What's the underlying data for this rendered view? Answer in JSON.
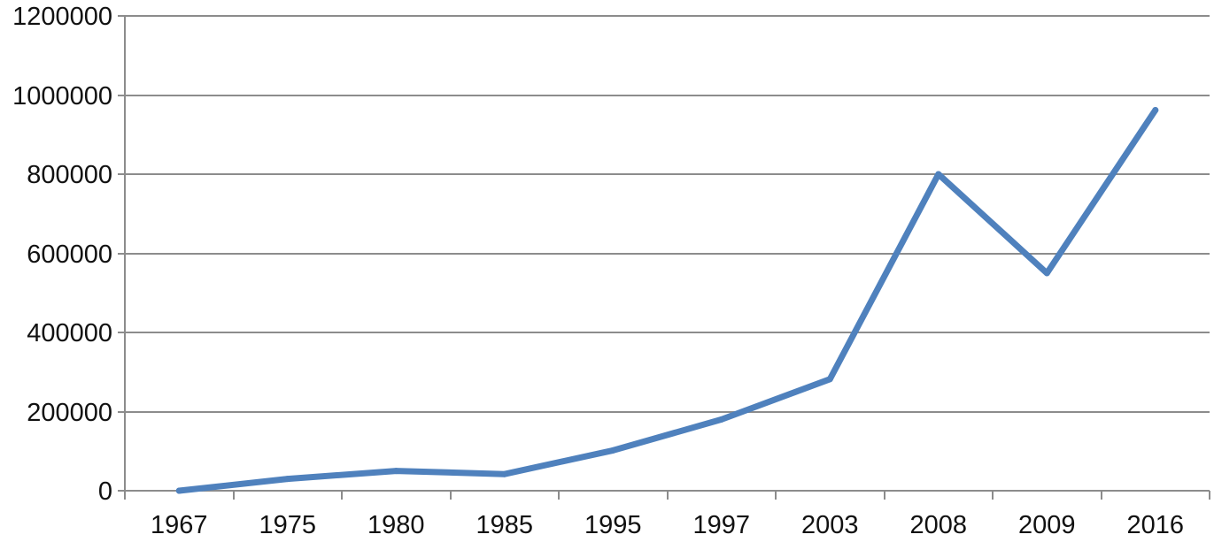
{
  "chart_data": {
    "type": "line",
    "title": "",
    "xlabel": "",
    "ylabel": "",
    "categories": [
      "1967",
      "1975",
      "1980",
      "1985",
      "1995",
      "1997",
      "2003",
      "2008",
      "2009",
      "2016"
    ],
    "series": [
      {
        "values": [
          0,
          30000,
          50000,
          42000,
          102000,
          180000,
          282000,
          800000,
          550000,
          962000
        ],
        "color": "#4f81bd"
      }
    ],
    "ylim": [
      0,
      1200000
    ],
    "yticks": [
      0,
      200000,
      400000,
      600000,
      800000,
      1000000,
      1200000
    ],
    "ytick_labels": [
      "0",
      "200000",
      "400000",
      "600000",
      "800000",
      "1000000",
      "1200000"
    ],
    "grid": true,
    "legend": "none",
    "colors": {
      "gridline": "#8c8c8c",
      "axis": "#8c8c8c",
      "text": "#111111"
    }
  }
}
